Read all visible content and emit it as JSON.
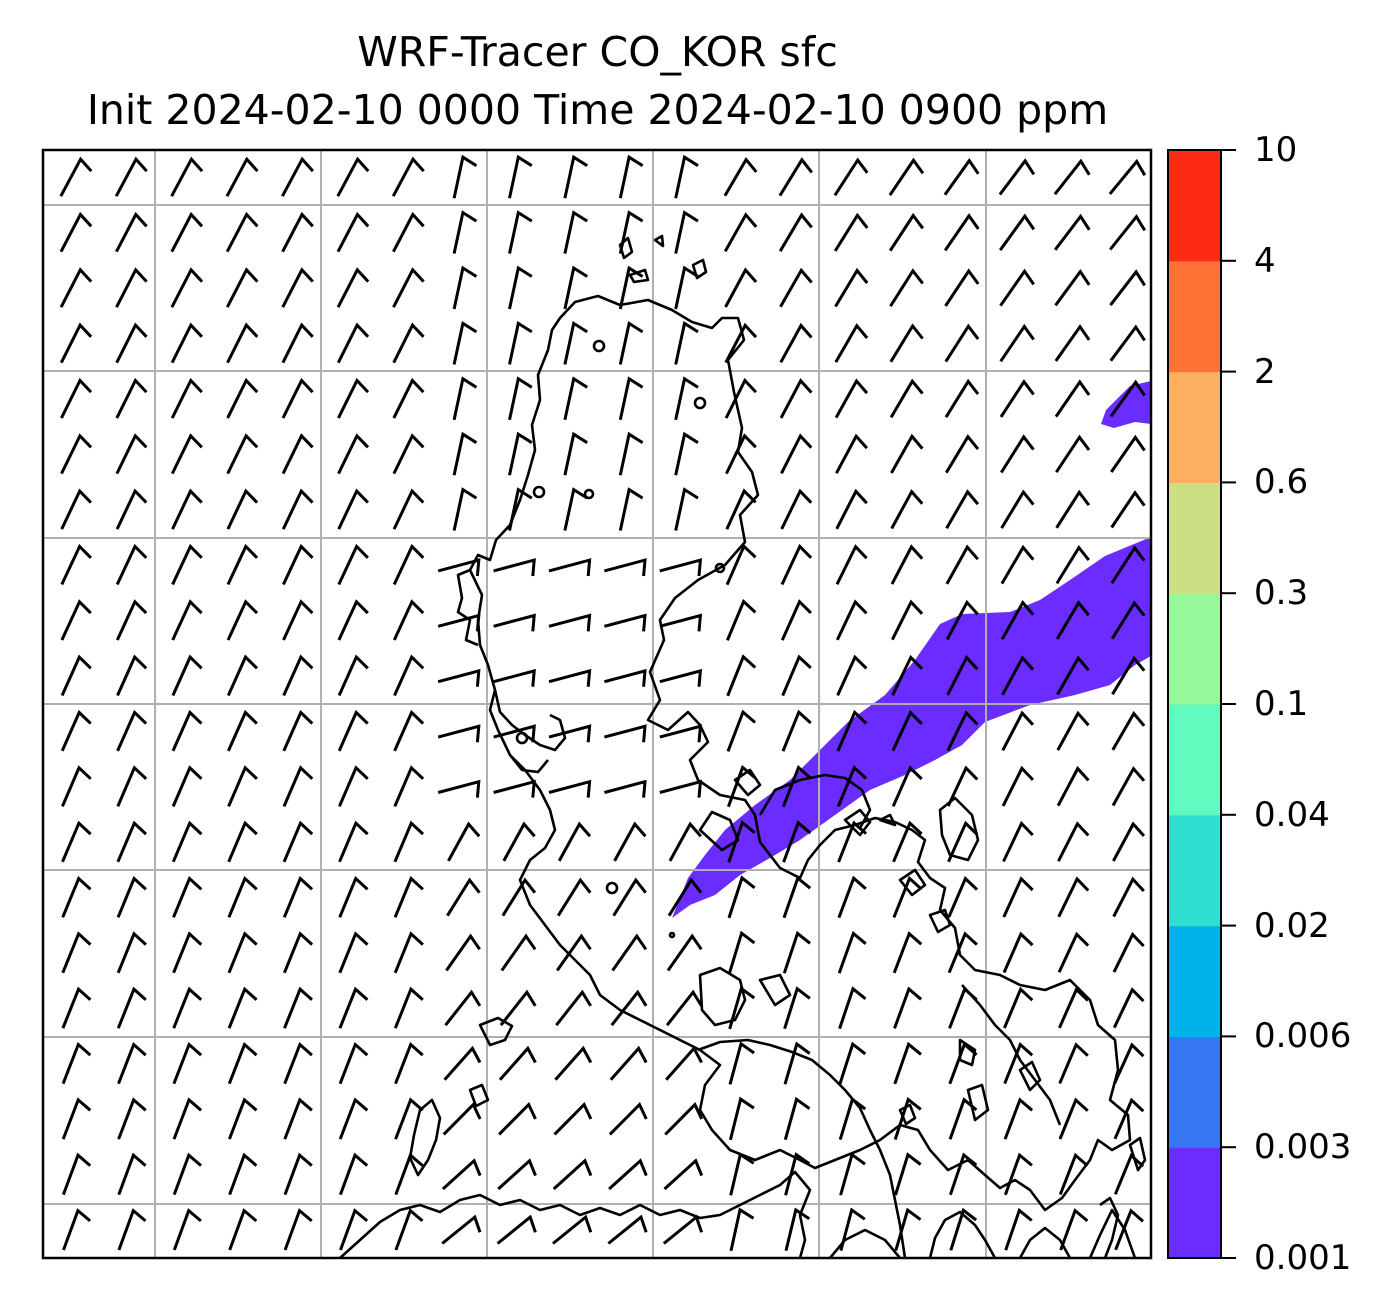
{
  "title": {
    "line1": "WRF-Tracer CO_KOR sfc",
    "line2": "Init 2024-02-10 0000 Time 2024-02-10 0900 ppm"
  },
  "colorbar": {
    "levels": [
      "0.001",
      "0.003",
      "0.006",
      "0.02",
      "0.04",
      "0.1",
      "0.3",
      "0.6",
      "2",
      "4",
      "10"
    ],
    "colors": [
      "#6a2cff",
      "#3577f2",
      "#00b2ea",
      "#2ee0d2",
      "#62fbbf",
      "#95f99a",
      "#cbe083",
      "#fdb062",
      "#ff7337",
      "#ff2a14"
    ]
  },
  "plume": {
    "level": "0.001",
    "color": "#6a2cff"
  },
  "map_style": {
    "coastline_color": "#000000",
    "gridline_color": "#b0b0b0",
    "barb_color": "#000000",
    "background": "#ffffff"
  }
}
